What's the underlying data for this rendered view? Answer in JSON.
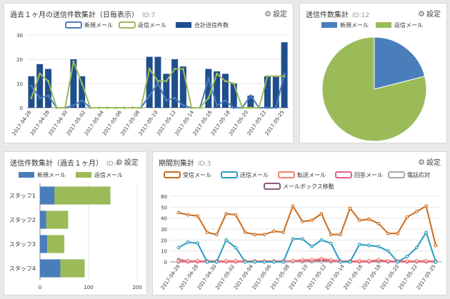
{
  "panels": {
    "daily": {
      "title": "過去１ヶ月の送信件数集計（日毎表示）",
      "id": "ID:7",
      "settings": "設定"
    },
    "pie": {
      "title": "送信件数集計",
      "id": "ID:12",
      "settings": "設定"
    },
    "staff": {
      "title": "送信件数集計（過去１ヶ月）",
      "id": "ID:4",
      "settings": "設定"
    },
    "period": {
      "title": "期間別集計",
      "id": "ID:3",
      "settings": "設定"
    }
  },
  "colors": {
    "blue": "#4a7ebb",
    "green": "#9bbb59",
    "navy": "#1f4e8c",
    "orange": "#cc6a1a",
    "teal": "#2a9ac0",
    "salmon": "#f08070",
    "pink": "#e06090",
    "gray": "#aaaaaa",
    "plum": "#8a5a7a"
  },
  "chart_data": [
    {
      "type": "bar",
      "title": "過去１ヶ月の送信件数集計（日毎表示）",
      "legend": [
        "新規メール",
        "返信メール",
        "合計送信件数"
      ],
      "ylim": [
        0,
        30
      ],
      "yticks": [
        "0",
        "10",
        "20",
        "30"
      ],
      "x_labels": [
        "2017-04-26",
        "2017-04-28",
        "2017-04-30",
        "2017-05-02",
        "2017-05-04",
        "2017-05-06",
        "2017-05-08",
        "2017-05-10",
        "2017-05-12",
        "2017-05-14",
        "2017-05-16",
        "2017-05-18",
        "2017-05-20",
        "2017-05-22",
        "2017-05-25"
      ],
      "series": [
        {
          "name": "合計送信件数",
          "kind": "bar",
          "values": [
            13,
            18,
            16,
            0,
            0,
            20,
            13,
            0,
            0,
            0,
            0,
            0,
            0,
            0,
            21,
            21,
            14,
            20,
            17,
            0,
            0,
            16,
            15,
            14,
            10,
            0,
            5,
            0,
            13,
            13,
            27
          ]
        },
        {
          "name": "新規メール",
          "kind": "line",
          "values": [
            9,
            4,
            5,
            0,
            0,
            1,
            3,
            0,
            0,
            0,
            0,
            0,
            0,
            0,
            5,
            10,
            3,
            4,
            1,
            0,
            0,
            12,
            1,
            3,
            0,
            0,
            5,
            0,
            0,
            0,
            14
          ]
        },
        {
          "name": "返信メール",
          "kind": "line",
          "values": [
            4,
            14,
            11,
            0,
            0,
            19,
            10,
            0,
            0,
            0,
            0,
            0,
            0,
            0,
            16,
            11,
            11,
            16,
            16,
            0,
            0,
            4,
            14,
            11,
            10,
            0,
            0,
            0,
            13,
            13,
            13
          ]
        }
      ]
    },
    {
      "type": "pie",
      "title": "送信件数集計",
      "legend": [
        "新規メール",
        "返信メール"
      ],
      "values": [
        21,
        79
      ]
    },
    {
      "type": "bar",
      "orientation": "horizontal",
      "stacked": true,
      "title": "送信件数集計（過去１ヶ月）",
      "legend": [
        "新規メール",
        "返信メール"
      ],
      "categories": [
        "スタッフ1",
        "スタッフ2",
        "スタッフ3",
        "スタッフ4"
      ],
      "xlim": [
        0,
        200
      ],
      "xticks": [
        "0",
        "100",
        "200"
      ],
      "series": [
        {
          "name": "新規メール",
          "values": [
            30,
            13,
            15,
            42
          ]
        },
        {
          "name": "返信メール",
          "values": [
            115,
            45,
            35,
            50
          ]
        }
      ]
    },
    {
      "type": "line",
      "title": "期間別集計",
      "legend": [
        "受信メール",
        "送信メール",
        "転送メール",
        "回答メール",
        "電話応対",
        "メールボックス移動"
      ],
      "ylim": [
        0,
        60
      ],
      "yticks": [
        "0",
        "10",
        "20",
        "30",
        "40",
        "50",
        "60"
      ],
      "x_labels": [
        "2017-04-26",
        "2017-04-28",
        "2017-04-30",
        "2017-05-02",
        "2017-05-04",
        "2017-05-06",
        "2017-05-08",
        "2017-05-10",
        "2017-05-12",
        "2017-05-14",
        "2017-05-16",
        "2017-05-18",
        "2017-05-20",
        "2017-05-22",
        "2017-05-25"
      ],
      "series": [
        {
          "name": "受信メール",
          "values": [
            45,
            43,
            42,
            27,
            25,
            44,
            43,
            27,
            25,
            25,
            28,
            27,
            51,
            37,
            38,
            44,
            25,
            25,
            49,
            38,
            39,
            35,
            26,
            26,
            41,
            46,
            51,
            15
          ]
        },
        {
          "name": "送信メール",
          "values": [
            13,
            18,
            17,
            0,
            0,
            20,
            13,
            0,
            0,
            0,
            0,
            0,
            21,
            21,
            14,
            20,
            17,
            0,
            0,
            16,
            15,
            14,
            10,
            0,
            5,
            13,
            27,
            0
          ]
        },
        {
          "name": "転送メール",
          "values": [
            1,
            1,
            1,
            1,
            1,
            1,
            1,
            1,
            1,
            1,
            1,
            1,
            1,
            2,
            2,
            3,
            2,
            1,
            1,
            1,
            1,
            2,
            1,
            1,
            1,
            1,
            1,
            1
          ]
        },
        {
          "name": "回答メール",
          "values": [
            0,
            0,
            0,
            0,
            0,
            0,
            0,
            0,
            0,
            0,
            0,
            0,
            1,
            1,
            1,
            2,
            1,
            0,
            0,
            0,
            0,
            1,
            0,
            0,
            0,
            0,
            0,
            0
          ]
        },
        {
          "name": "電話応対",
          "values": [
            0,
            0,
            0,
            0,
            0,
            0,
            0,
            0,
            0,
            0,
            0,
            0,
            0,
            0,
            0,
            0,
            0,
            0,
            0,
            0,
            0,
            0,
            0,
            0,
            0,
            0,
            0,
            0
          ]
        },
        {
          "name": "メールボックス移動",
          "values": [
            2,
            1,
            1,
            0,
            0,
            1,
            1,
            0,
            0,
            0,
            0,
            0,
            1,
            1,
            1,
            1,
            1,
            0,
            0,
            1,
            1,
            1,
            1,
            0,
            0,
            1,
            1,
            0
          ]
        }
      ]
    }
  ]
}
